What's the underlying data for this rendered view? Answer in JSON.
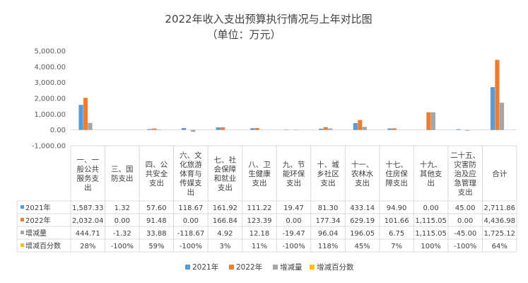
{
  "chart_data": {
    "type": "bar",
    "title": "2022年收入支出预算执行情况与上年对比图",
    "subtitle": "（单位：万元）",
    "ylim": [
      -1000,
      5000
    ],
    "yticks": [
      "5,000.00",
      "4,000.00",
      "3,000.00",
      "2,000.00",
      "1,000.00",
      "0.00",
      "-1,000.00"
    ],
    "ytick_values": [
      5000,
      4000,
      3000,
      2000,
      1000,
      0,
      -1000
    ],
    "grid": false,
    "legend_position": "bottom",
    "categories": [
      [
        "一、一",
        "般公共",
        "服务支",
        "出"
      ],
      [
        "三、国",
        "防支出"
      ],
      [
        "四、公",
        "共安全",
        "支出"
      ],
      [
        "六、文",
        "化旅游",
        "体育与",
        "传媒支",
        "出"
      ],
      [
        "七、社",
        "会保障",
        "和就业",
        "支出"
      ],
      [
        "八、卫",
        "生健康",
        "支出"
      ],
      [
        "九、节",
        "能环保",
        "支出"
      ],
      [
        "十、城",
        "乡社区",
        "支出"
      ],
      [
        "十一、",
        "农林水",
        "支出"
      ],
      [
        "十七、",
        "住房保",
        "障支出"
      ],
      [
        "十九、",
        "其他支",
        "出"
      ],
      [
        "二十五、",
        "灾害防",
        "治及应",
        "急管理",
        "支出"
      ],
      [
        "合计"
      ]
    ],
    "series": [
      {
        "name": "2021年",
        "color": "#5b9bd5",
        "values": [
          1587.33,
          1.32,
          57.6,
          118.67,
          161.92,
          111.22,
          19.47,
          81.3,
          433.14,
          94.9,
          0.0,
          45.0,
          2711.86
        ],
        "labels": [
          "1,587.33",
          "1.32",
          "57.60",
          "118.67",
          "161.92",
          "111.22",
          "19.47",
          "81.30",
          "433.14",
          "94.90",
          "0.00",
          "45.00",
          "2,711.86"
        ]
      },
      {
        "name": "2022年",
        "color": "#ed7d31",
        "values": [
          2032.04,
          0.0,
          91.48,
          0.0,
          166.84,
          123.39,
          0.0,
          177.34,
          629.19,
          101.66,
          1115.05,
          0.0,
          4436.98
        ],
        "labels": [
          "2,032.04",
          "0.00",
          "91.48",
          "0.00",
          "166.84",
          "123.39",
          "0.00",
          "177.34",
          "629.19",
          "101.66",
          "1,115.05",
          "0.00",
          "4,436.98"
        ]
      },
      {
        "name": "增减量",
        "color": "#a5a5a5",
        "values": [
          444.71,
          -1.32,
          33.88,
          -118.67,
          4.92,
          12.18,
          -19.47,
          96.04,
          196.05,
          6.75,
          1115.05,
          -45.0,
          1725.12
        ],
        "labels": [
          "444.71",
          "-1.32",
          "33.88",
          "-118.67",
          "4.92",
          "12.18",
          "-19.47",
          "96.04",
          "196.05",
          "6.75",
          "1,115.05",
          "-45.00",
          "1,725.12"
        ]
      },
      {
        "name": "增减百分数",
        "color": "#ffc000",
        "values": [
          0.28,
          -1.0,
          0.59,
          -1.0,
          0.03,
          0.11,
          -1.0,
          1.18,
          0.45,
          0.07,
          1.0,
          -1.0,
          0.64
        ],
        "labels": [
          "28%",
          "-100%",
          "59%",
          "-100%",
          "3%",
          "11%",
          "-100%",
          "118%",
          "45%",
          "7%",
          "100%",
          "-100%",
          "64%"
        ]
      }
    ]
  }
}
